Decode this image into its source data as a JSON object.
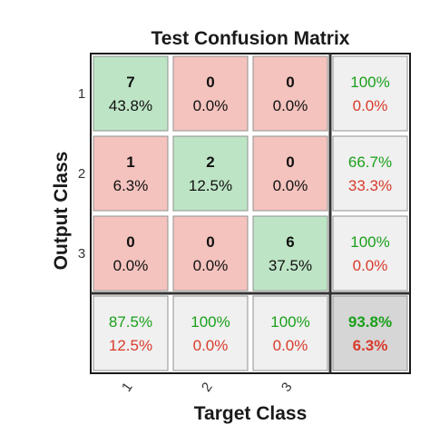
{
  "chart_data": {
    "type": "heatmap",
    "title": "Test Confusion Matrix",
    "xlabel": "Target Class",
    "ylabel": "Output Class",
    "x_ticks": [
      "1",
      "2",
      "3"
    ],
    "y_ticks": [
      "1",
      "2",
      "3"
    ],
    "matrix": [
      [
        {
          "count": "7",
          "percent": "43.8%"
        },
        {
          "count": "0",
          "percent": "0.0%"
        },
        {
          "count": "0",
          "percent": "0.0%"
        }
      ],
      [
        {
          "count": "1",
          "percent": "6.3%"
        },
        {
          "count": "2",
          "percent": "12.5%"
        },
        {
          "count": "0",
          "percent": "0.0%"
        }
      ],
      [
        {
          "count": "0",
          "percent": "0.0%"
        },
        {
          "count": "0",
          "percent": "0.0%"
        },
        {
          "count": "6",
          "percent": "37.5%"
        }
      ]
    ],
    "row_summary": [
      {
        "correct": "100%",
        "incorrect": "0.0%"
      },
      {
        "correct": "66.7%",
        "incorrect": "33.3%"
      },
      {
        "correct": "100%",
        "incorrect": "0.0%"
      }
    ],
    "col_summary": [
      {
        "correct": "87.5%",
        "incorrect": "12.5%"
      },
      {
        "correct": "100%",
        "incorrect": "0.0%"
      },
      {
        "correct": "100%",
        "incorrect": "0.0%"
      }
    ],
    "overall": {
      "correct": "93.8%",
      "incorrect": "6.3%"
    },
    "colors": {
      "diagonal": "#bde5c5",
      "off_diagonal": "#f4c3be",
      "summary": "#f0f0f0",
      "overall": "#d6d6d6",
      "correct_text": "#1aa01a",
      "incorrect_text": "#d93a2b"
    }
  }
}
